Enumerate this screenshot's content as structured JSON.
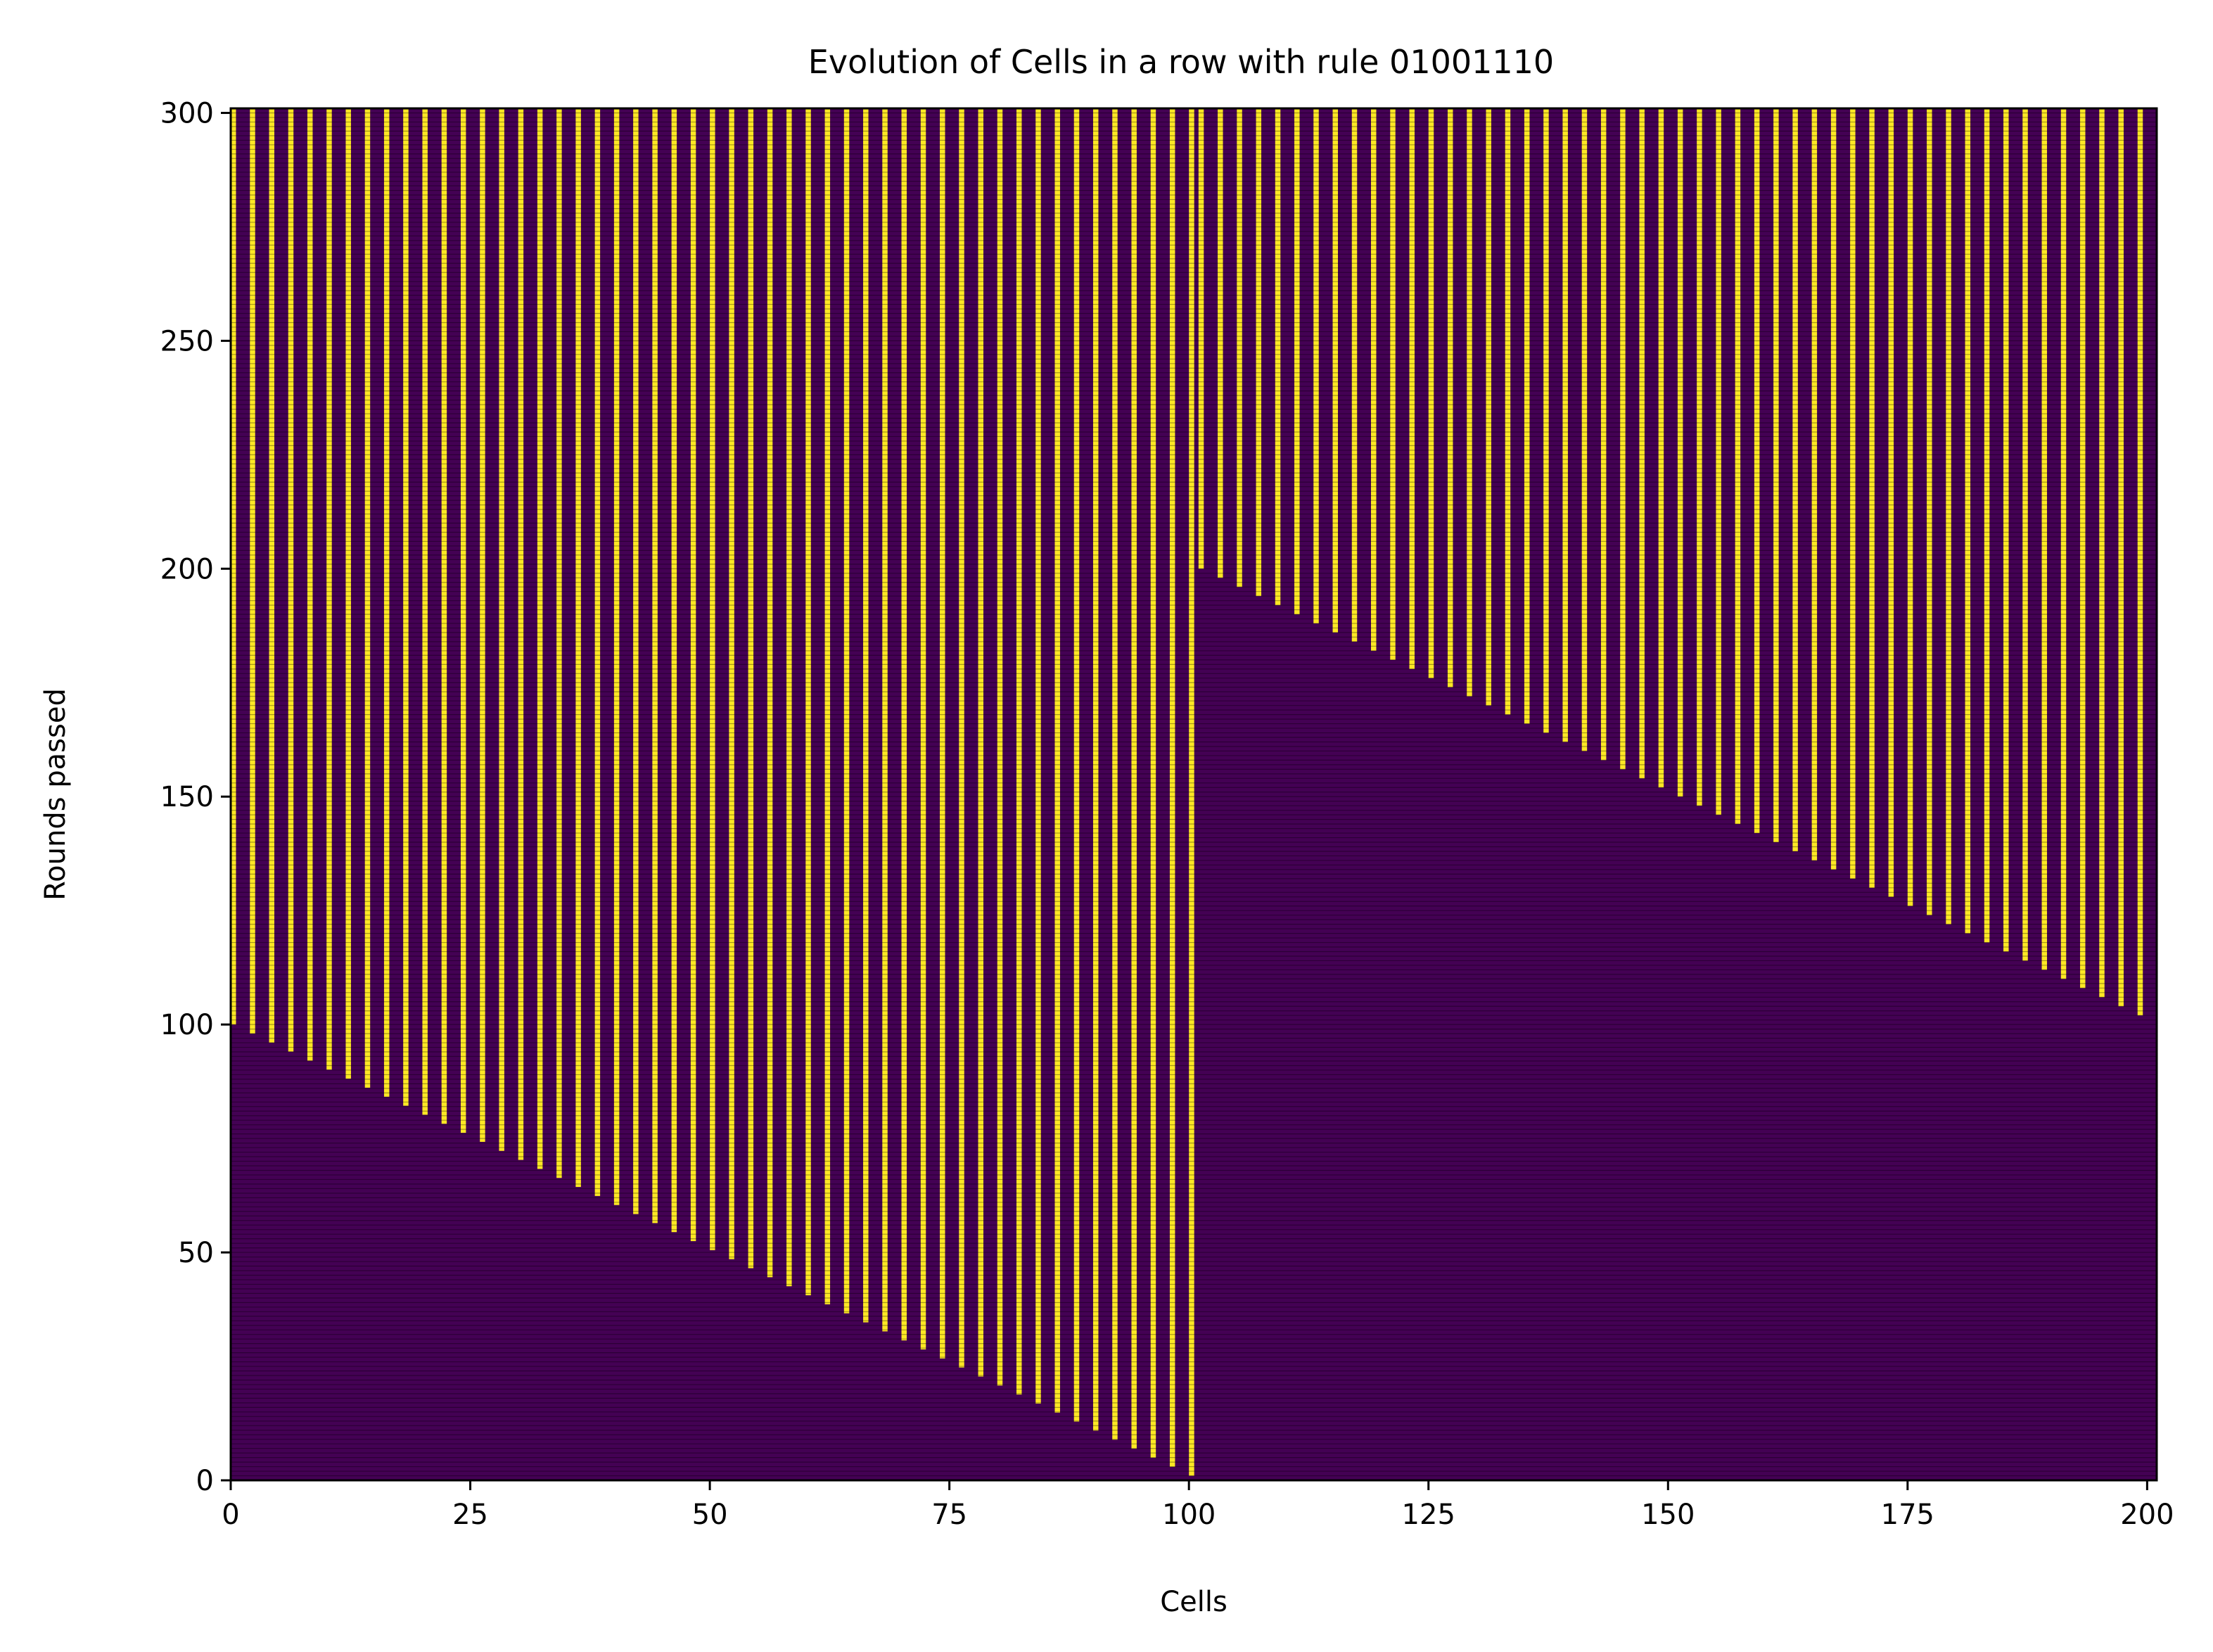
{
  "chart_data": {
    "type": "heatmap",
    "title": "Evolution of Cells in a row with rule 01001110",
    "xlabel": "Cells",
    "ylabel": "Rounds passed",
    "xlim": [
      0,
      201
    ],
    "ylim": [
      0,
      301
    ],
    "x_ticks": [
      "0",
      "25",
      "50",
      "75",
      "100",
      "125",
      "150",
      "175",
      "200"
    ],
    "y_ticks": [
      "0",
      "50",
      "100",
      "150",
      "200",
      "250",
      "300"
    ],
    "x_tick_values": [
      0,
      25,
      50,
      75,
      100,
      125,
      150,
      175,
      200
    ],
    "y_tick_values": [
      0,
      50,
      100,
      150,
      200,
      250,
      300
    ],
    "grid": false,
    "colormap": "viridis",
    "colors": {
      "off": "#440154",
      "on": "#fde725",
      "cell_edge": "#000000"
    },
    "regions": [
      {
        "name": "left-active-region",
        "description_values": {
          "x_start": 0,
          "x_end": 101,
          "front_y_at_x_start": 100,
          "front_y_at_x_end": 0,
          "pattern": "alternating columns of on/off above the front, off below"
        }
      },
      {
        "name": "right-active-region",
        "description_values": {
          "x_start": 101,
          "x_end": 201,
          "front_y_at_x_start": 200,
          "front_y_at_x_end": 100,
          "pattern": "alternating columns of on/off above the front, off below"
        }
      }
    ]
  }
}
